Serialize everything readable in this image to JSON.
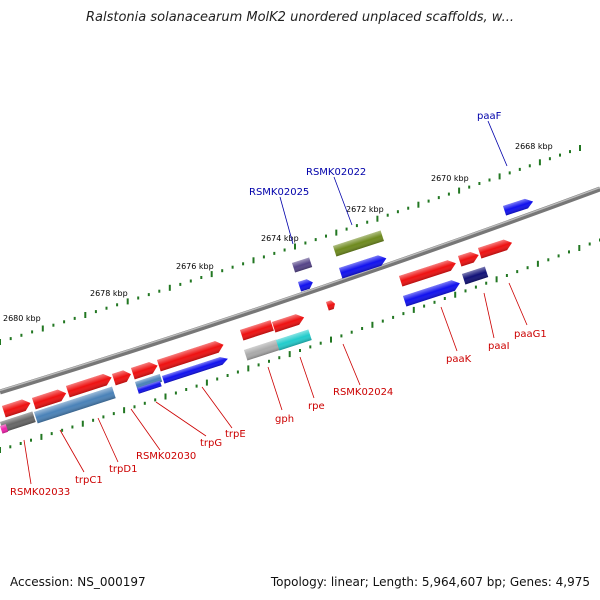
{
  "title": "Ralstonia solanacearum MolK2 unordered unplaced scaffolds, w...",
  "footer": {
    "accession": "Accession: NS_000197",
    "topology": "Topology: linear; Length: 5,964,607 bp; Genes: 4,975"
  },
  "ticks": [
    {
      "label": "2668 kbp"
    },
    {
      "label": "2670 kbp"
    },
    {
      "label": "2672 kbp"
    },
    {
      "label": "2674 kbp"
    },
    {
      "label": "2676 kbp"
    },
    {
      "label": "2678 kbp"
    },
    {
      "label": "2680 kbp"
    }
  ],
  "labels_top": [
    {
      "text": "paaF"
    },
    {
      "text": "RSMK02022"
    },
    {
      "text": "RSMK02025"
    }
  ],
  "labels_bottom": [
    {
      "text": "paaG1"
    },
    {
      "text": "paaI"
    },
    {
      "text": "paaK"
    },
    {
      "text": "RSMK02024"
    },
    {
      "text": "rpe"
    },
    {
      "text": "gph"
    },
    {
      "text": "trpE"
    },
    {
      "text": "trpG"
    },
    {
      "text": "RSMK02030"
    },
    {
      "text": "trpD1"
    },
    {
      "text": "trpC1"
    },
    {
      "text": "RSMK02033"
    }
  ],
  "colors": {
    "red": "#ee1111",
    "blue": "#1111ee",
    "navy": "#111177",
    "steel": "#4a82b8",
    "olive": "#6e8a1e",
    "cyan": "#22cccc",
    "gray": "#aaaaaa",
    "darkgray": "#666666",
    "purple": "#554488",
    "magenta": "#ee22aa",
    "tick": "#227722"
  }
}
